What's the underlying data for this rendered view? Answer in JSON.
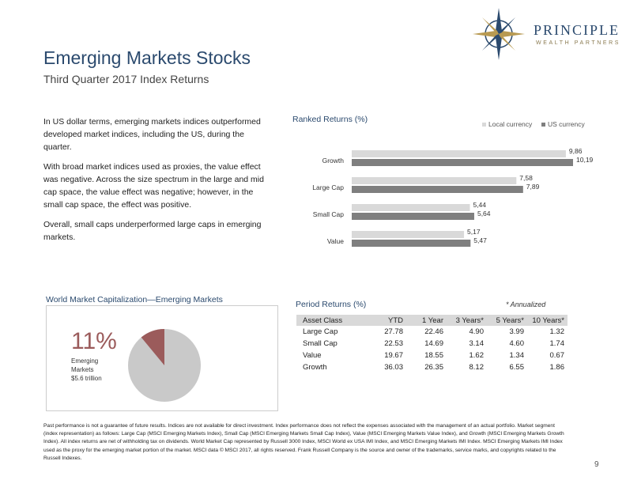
{
  "brand": {
    "name": "PRINCIPLE",
    "sub": "WEALTH PARTNERS"
  },
  "title": "Emerging Markets Stocks",
  "subtitle": "Third Quarter 2017 Index Returns",
  "paragraphs": [
    "In US dollar terms, emerging markets indices outperformed developed market indices, including the US, during the quarter.",
    "With broad market indices used as proxies, the value effect was negative. Across the size spectrum in the large and mid cap space, the value effect was negative; however, in the small cap space, the effect was positive.",
    "Overall, small caps underperformed large caps in emerging markets."
  ],
  "colors": {
    "local": "#d9d9d9",
    "us": "#7f7f7f",
    "accent": "#2b4a6e",
    "pie_main": "#c9c9c9",
    "pie_slice": "#9b5b5b"
  },
  "chart_data": [
    {
      "type": "bar",
      "title": "Ranked Returns (%)",
      "categories": [
        "Growth",
        "Large Cap",
        "Small Cap",
        "Value"
      ],
      "series": [
        {
          "name": "Local currency",
          "values": [
            9.86,
            7.58,
            5.44,
            5.17
          ],
          "labels": [
            "9,86",
            "7,58",
            "5,44",
            "5,17"
          ]
        },
        {
          "name": "US currency",
          "values": [
            10.19,
            7.89,
            5.64,
            5.47
          ],
          "labels": [
            "10,19",
            "7,89",
            "5,64",
            "5,47"
          ]
        }
      ],
      "xlim": [
        0,
        10.19
      ]
    },
    {
      "type": "pie",
      "title": "World Market Capitalization—Emerging Markets",
      "values": [
        11,
        89
      ],
      "callout_pct": "11%",
      "callout_label": [
        "Emerging",
        "Markets",
        "$5.6 trillion"
      ]
    }
  ],
  "period_table": {
    "title": "Period Returns (%)",
    "note": "* Annualized",
    "headers": [
      "Asset Class",
      "YTD",
      "1 Year",
      "3 Years*",
      "5 Years*",
      "10 Years*"
    ],
    "rows": [
      [
        "Large Cap",
        "27.78",
        "22.46",
        "4.90",
        "3.99",
        "1.32"
      ],
      [
        "Small Cap",
        "22.53",
        "14.69",
        "3.14",
        "4.60",
        "1.74"
      ],
      [
        "Value",
        "19.67",
        "18.55",
        "1.62",
        "1.34",
        "0.67"
      ],
      [
        "Growth",
        "36.03",
        "26.35",
        "8.12",
        "6.55",
        "1.86"
      ]
    ]
  },
  "footnote": "Past performance is not a guarantee of future results. Indices are not available for direct investment. Index performance does not reflect the expenses associated with the management of an actual portfolio. Market segment (index representation) as follows: Large Cap (MSCI Emerging Markets Index), Small Cap (MSCI Emerging Markets Small Cap Index), Value (MSCI Emerging Markets Value Index), and Growth (MSCI Emerging Markets Growth Index). All index returns are net of withholding tax on dividends. World Market Cap represented by Russell 3000 Index, MSCI World ex USA IMI Index, and MSCI Emerging Markets IMI Index. MSCI Emerging Markets IMI Index used as the proxy for the emerging market portion of the market. MSCI data © MSCI 2017, all rights reserved. Frank Russell Company is the source and owner of the trademarks, service marks, and copyrights related to the Russell Indexes.",
  "page_number": "9"
}
